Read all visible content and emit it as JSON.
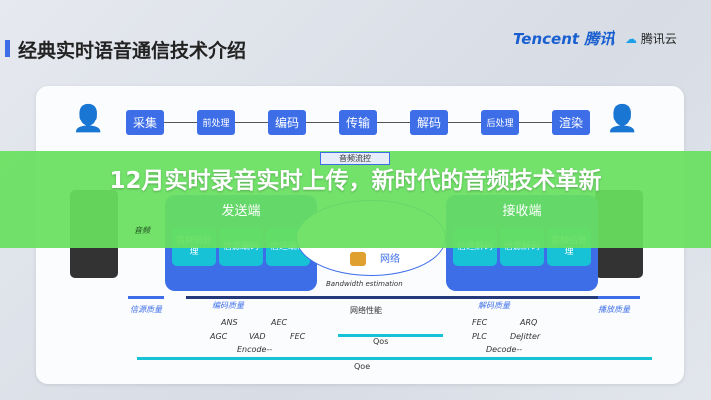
{
  "header": {
    "title": "经典实时语音通信技术介绍",
    "logo_tencent": "Tencent 腾讯",
    "logo_cloud": "腾讯云"
  },
  "pipeline": [
    "采集",
    "前处理",
    "编码",
    "传输",
    "解码",
    "后处理",
    "渲染"
  ],
  "sender": {
    "title": "发送端",
    "blocks": [
      "音频前处理",
      "信源编码",
      "信道编码"
    ],
    "input_label": "音频"
  },
  "receiver": {
    "title": "接收端",
    "blocks": [
      "信道解码",
      "信源解码",
      "音频后处理"
    ]
  },
  "network": {
    "flow_control": "音频流控",
    "cloud_label": "网络",
    "bandwidth": "Bandwidth estimation"
  },
  "quality": {
    "source": "信源质量",
    "encode": "编码质量",
    "network": "网络性能",
    "decode": "解码质量",
    "playback": "播放质量"
  },
  "encode_items": [
    "ANS",
    "AEC",
    "AGC",
    "VAD",
    "FEC"
  ],
  "encode_label": "Encode--",
  "decode_items": [
    "FEC",
    "ARQ",
    "PLC",
    "DeJitter"
  ],
  "decode_label": "Decode--",
  "qos": "Qos",
  "qoe": "Qoe",
  "overlay": {
    "headline": "12月实时录音实时上传，新时代的音频技术革新"
  },
  "colors": {
    "accent": "#3d6ee8",
    "teal": "#18c2d6",
    "band": "#68e060"
  }
}
